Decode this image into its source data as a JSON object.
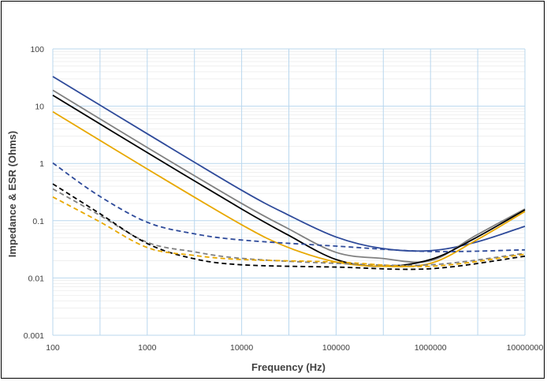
{
  "chart_data": {
    "type": "line",
    "title": "",
    "xlabel": "Frequency (Hz)",
    "ylabel": "Impedance & ESR (Ohms)",
    "x_scale": "log",
    "y_scale": "log",
    "xlim": [
      100,
      10000000
    ],
    "ylim": [
      0.001,
      100
    ],
    "x_ticks": [
      "100",
      "1000",
      "10000",
      "100000",
      "1000000",
      "10000000"
    ],
    "y_ticks": [
      "0.001",
      "0.01",
      "0.1",
      "1",
      "10",
      "100"
    ],
    "grid": true,
    "legend": "none",
    "series": [
      {
        "color": "#2e4a9a",
        "dash": false,
        "points": [
          [
            100,
            33
          ],
          [
            1000,
            3.3
          ],
          [
            10000,
            0.34
          ],
          [
            30000,
            0.13
          ],
          [
            100000,
            0.052
          ],
          [
            300000,
            0.033
          ],
          [
            1000000,
            0.03
          ],
          [
            3000000,
            0.042
          ],
          [
            10000000,
            0.08
          ]
        ]
      },
      {
        "color": "#808080",
        "dash": false,
        "points": [
          [
            100,
            19
          ],
          [
            1000,
            1.9
          ],
          [
            10000,
            0.2
          ],
          [
            30000,
            0.075
          ],
          [
            100000,
            0.028
          ],
          [
            300000,
            0.022
          ],
          [
            1000000,
            0.02
          ],
          [
            3000000,
            0.055
          ],
          [
            10000000,
            0.16
          ]
        ]
      },
      {
        "color": "#000000",
        "dash": false,
        "points": [
          [
            100,
            15.5
          ],
          [
            1000,
            1.55
          ],
          [
            10000,
            0.16
          ],
          [
            30000,
            0.058
          ],
          [
            100000,
            0.021
          ],
          [
            300000,
            0.016
          ],
          [
            1000000,
            0.021
          ],
          [
            3000000,
            0.05
          ],
          [
            10000000,
            0.155
          ]
        ]
      },
      {
        "color": "#e8a800",
        "dash": false,
        "points": [
          [
            100,
            8
          ],
          [
            1000,
            0.8
          ],
          [
            10000,
            0.085
          ],
          [
            30000,
            0.035
          ],
          [
            100000,
            0.019
          ],
          [
            300000,
            0.016
          ],
          [
            1000000,
            0.018
          ],
          [
            3000000,
            0.045
          ],
          [
            10000000,
            0.145
          ]
        ]
      },
      {
        "color": "#2e4a9a",
        "dash": true,
        "points": [
          [
            100,
            1.02
          ],
          [
            300,
            0.28
          ],
          [
            1000,
            0.094
          ],
          [
            3000,
            0.06
          ],
          [
            10000,
            0.046
          ],
          [
            100000,
            0.036
          ],
          [
            1000000,
            0.029
          ],
          [
            10000000,
            0.031
          ]
        ]
      },
      {
        "color": "#808080",
        "dash": true,
        "points": [
          [
            100,
            0.36
          ],
          [
            300,
            0.13
          ],
          [
            1000,
            0.042
          ],
          [
            3000,
            0.029
          ],
          [
            10000,
            0.022
          ],
          [
            100000,
            0.018
          ],
          [
            1000000,
            0.017
          ],
          [
            10000000,
            0.027
          ]
        ]
      },
      {
        "color": "#000000",
        "dash": true,
        "points": [
          [
            100,
            0.44
          ],
          [
            300,
            0.14
          ],
          [
            1000,
            0.04
          ],
          [
            3000,
            0.022
          ],
          [
            10000,
            0.017
          ],
          [
            100000,
            0.0155
          ],
          [
            1000000,
            0.0145
          ],
          [
            10000000,
            0.024
          ]
        ]
      },
      {
        "color": "#e8a800",
        "dash": true,
        "points": [
          [
            100,
            0.26
          ],
          [
            300,
            0.1
          ],
          [
            1000,
            0.034
          ],
          [
            3000,
            0.025
          ],
          [
            10000,
            0.021
          ],
          [
            100000,
            0.019
          ],
          [
            1000000,
            0.016
          ],
          [
            10000000,
            0.026
          ]
        ]
      }
    ]
  }
}
